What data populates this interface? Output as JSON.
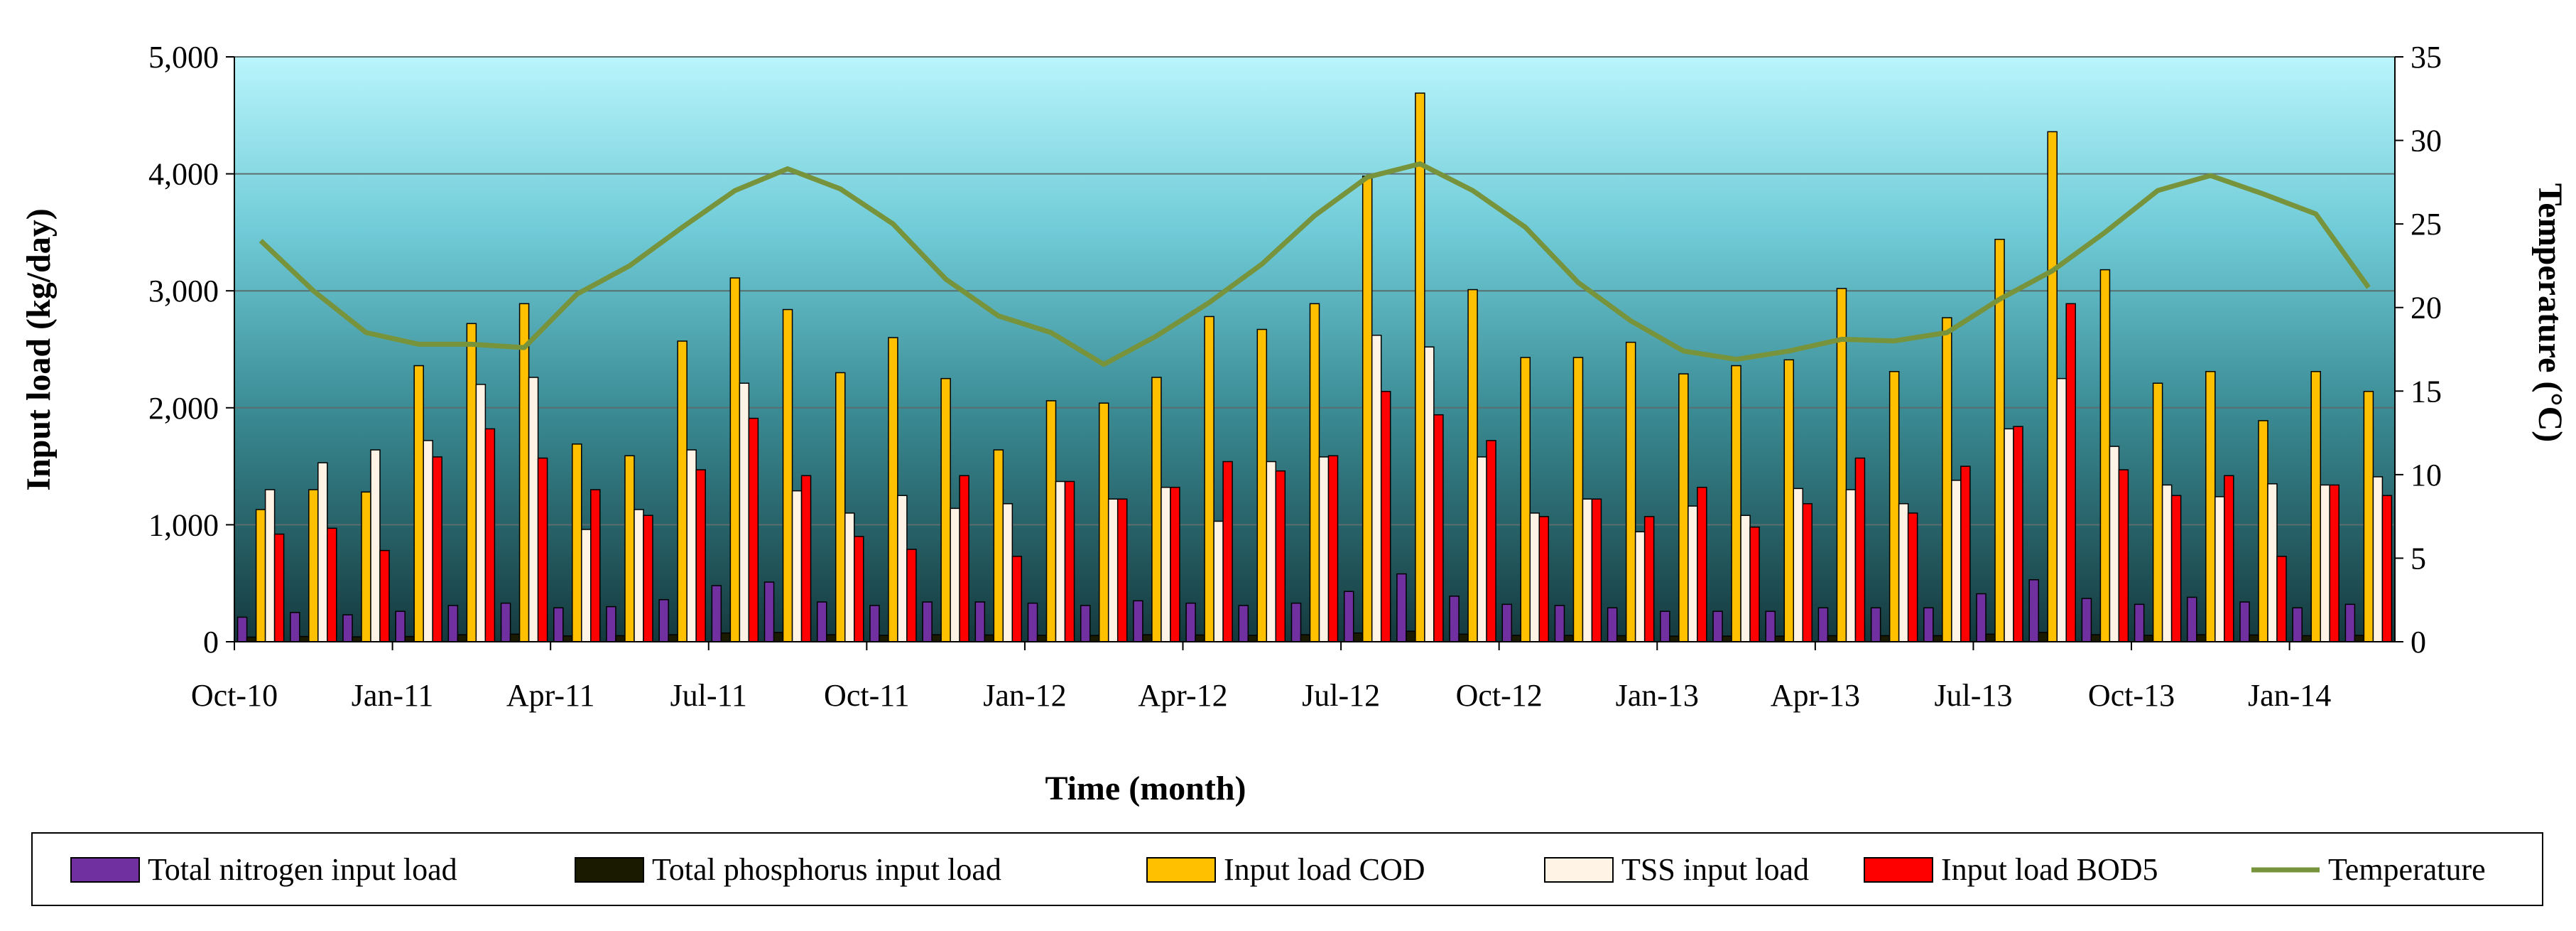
{
  "chart_data": {
    "type": "bar+line",
    "title": "",
    "xlabel": "Time (month)",
    "ylabel": "Input load  (kg/day)",
    "y2label": "Temperature (°C)",
    "ylim": [
      0,
      5000
    ],
    "y2lim": [
      0,
      35
    ],
    "yticks": [
      "0",
      "1,000",
      "2,000",
      "3,000",
      "4,000",
      "5,000"
    ],
    "y2ticks": [
      "0",
      "5",
      "10",
      "15",
      "20",
      "25",
      "30",
      "35"
    ],
    "x_tick_labels": [
      "Oct-10",
      "Jan-11",
      "Apr-11",
      "Jul-11",
      "Oct-11",
      "Jan-12",
      "Apr-12",
      "Jul-12",
      "Oct-12",
      "Jan-13",
      "Apr-13",
      "Jul-13",
      "Oct-13",
      "Jan-14"
    ],
    "categories": [
      "Oct-10",
      "Nov-10",
      "Dec-10",
      "Jan-11",
      "Feb-11",
      "Mar-11",
      "Apr-11",
      "May-11",
      "Jun-11",
      "Jul-11",
      "Aug-11",
      "Sep-11",
      "Oct-11",
      "Nov-11",
      "Dec-11",
      "Jan-12",
      "Feb-12",
      "Mar-12",
      "Apr-12",
      "May-12",
      "Jun-12",
      "Jul-12",
      "Aug-12",
      "Sep-12",
      "Oct-12",
      "Nov-12",
      "Dec-12",
      "Jan-13",
      "Feb-13",
      "Mar-13",
      "Apr-13",
      "May-13",
      "Jun-13",
      "Jul-13",
      "Aug-13",
      "Sep-13",
      "Oct-13",
      "Nov-13",
      "Dec-13",
      "Jan-14",
      "Feb-14"
    ],
    "series": [
      {
        "name": "Total nitrogen input load",
        "kind": "bar",
        "color": "#7030A0",
        "values": [
          210,
          250,
          230,
          260,
          310,
          330,
          290,
          300,
          360,
          480,
          510,
          340,
          310,
          340,
          340,
          330,
          310,
          350,
          330,
          310,
          330,
          430,
          580,
          390,
          320,
          310,
          290,
          260,
          260,
          260,
          290,
          290,
          290,
          410,
          530,
          370,
          320,
          380,
          340,
          290,
          320
        ]
      },
      {
        "name": "Total phosphorus input load",
        "kind": "bar",
        "color": "#1a1a00",
        "values": [
          40,
          45,
          42,
          45,
          60,
          65,
          50,
          52,
          60,
          75,
          80,
          60,
          55,
          60,
          58,
          55,
          54,
          60,
          58,
          55,
          60,
          75,
          90,
          65,
          55,
          54,
          52,
          48,
          48,
          48,
          52,
          52,
          52,
          65,
          80,
          60,
          55,
          60,
          58,
          52,
          55
        ]
      },
      {
        "name": "Input load COD",
        "kind": "bar",
        "color": "#FFC000",
        "values": [
          1130,
          1300,
          1280,
          2360,
          2720,
          2890,
          1690,
          1590,
          2570,
          3110,
          2840,
          2300,
          2600,
          2250,
          1640,
          2060,
          2040,
          2260,
          2780,
          2670,
          2890,
          3980,
          4690,
          3010,
          2430,
          2430,
          2560,
          2290,
          2360,
          2410,
          3020,
          2310,
          2770,
          3440,
          4360,
          3180,
          2210,
          2310,
          1890,
          2310,
          2140
        ]
      },
      {
        "name": "TSS input load",
        "kind": "bar",
        "color": "#FFF3E6",
        "values": [
          1300,
          1530,
          1640,
          1720,
          2200,
          2260,
          960,
          1130,
          1640,
          2210,
          1290,
          1100,
          1250,
          1140,
          1180,
          1370,
          1220,
          1320,
          1030,
          1540,
          1580,
          2620,
          2520,
          1580,
          1100,
          1220,
          940,
          1160,
          1080,
          1310,
          1300,
          1180,
          1380,
          1820,
          2250,
          1670,
          1340,
          1240,
          1350,
          1340,
          1410
        ]
      },
      {
        "name": "Input load BOD5",
        "kind": "bar",
        "color": "#FF0000",
        "values": [
          920,
          970,
          780,
          1580,
          1820,
          1570,
          1300,
          1080,
          1470,
          1910,
          1420,
          900,
          790,
          1420,
          730,
          1370,
          1220,
          1320,
          1540,
          1460,
          1590,
          2140,
          1940,
          1720,
          1070,
          1220,
          1070,
          1320,
          980,
          1180,
          1570,
          1100,
          1500,
          1840,
          2890,
          1470,
          1250,
          1420,
          730,
          1340,
          1250
        ]
      },
      {
        "name": "Temperature",
        "kind": "line",
        "axis": "y2",
        "color": "#77933C",
        "values": [
          24.0,
          21.0,
          18.5,
          17.8,
          17.8,
          17.6,
          20.8,
          22.5,
          24.8,
          27.0,
          28.3,
          27.1,
          25.0,
          21.7,
          19.5,
          18.5,
          16.6,
          18.3,
          20.3,
          22.6,
          25.5,
          27.8,
          28.6,
          27.0,
          24.8,
          21.5,
          19.2,
          17.4,
          16.9,
          17.4,
          18.1,
          18.0,
          18.5,
          20.5,
          22.2,
          24.5,
          27.0,
          27.9,
          26.8,
          25.6,
          21.2
        ]
      }
    ],
    "legend_position": "bottom"
  }
}
